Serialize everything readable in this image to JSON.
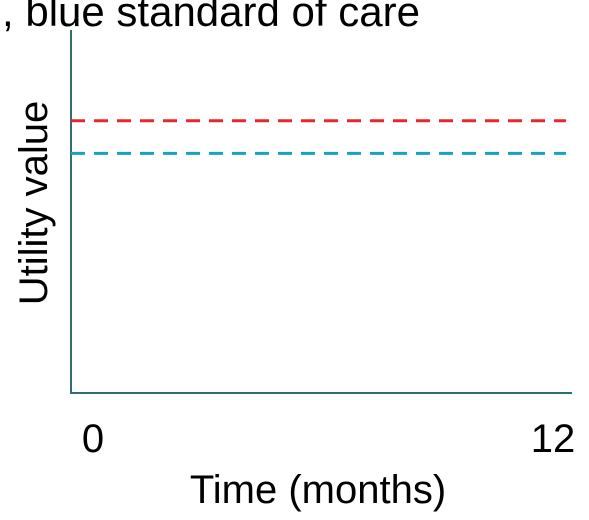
{
  "chart_data": {
    "type": "line",
    "title": ", blue standard of care",
    "xlabel": "Time (months)",
    "ylabel": "Utility value",
    "x_ticks": [
      "0",
      "12"
    ],
    "xlim": [
      0,
      12
    ],
    "ylim": [
      0,
      1
    ],
    "grid": false,
    "series": [
      {
        "color": "#e8262b",
        "dash": "dashed",
        "x": [
          0,
          12
        ],
        "y": [
          0.75,
          0.75
        ]
      },
      {
        "color": "#17a2bd",
        "dash": "dashed",
        "x": [
          0,
          12
        ],
        "y": [
          0.66,
          0.66
        ]
      }
    ]
  }
}
